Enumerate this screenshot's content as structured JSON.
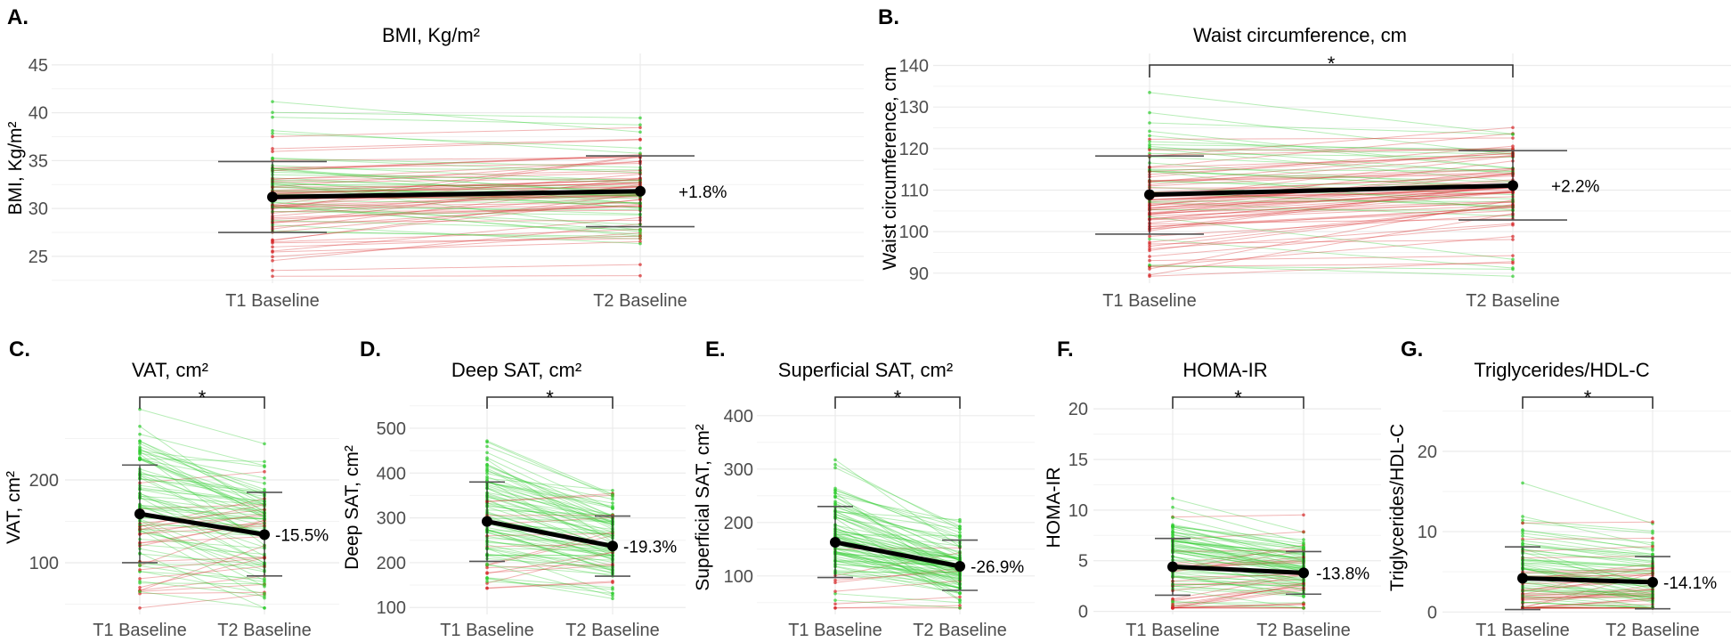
{
  "chart_data": [
    {
      "panel": "A.",
      "type": "line",
      "title": "BMI, Kg/m²",
      "ylabel": "BMI, Kg/m²",
      "categories": [
        "T1 Baseline",
        "T2 Baseline"
      ],
      "yticks": [
        25,
        30,
        35,
        40,
        45
      ],
      "ylim": [
        22.2,
        46.2
      ],
      "mean": [
        31.2,
        31.8
      ],
      "sd_low": [
        27.5,
        28.1
      ],
      "sd_high": [
        34.9,
        35.5
      ],
      "change": "+1.8%",
      "significant": false,
      "sig_label": ""
    },
    {
      "panel": "B.",
      "type": "line",
      "title": "Waist circumference, cm",
      "ylabel": "Waist circumference, cm",
      "categories": [
        "T1 Baseline",
        "T2 Baseline"
      ],
      "yticks": [
        90,
        100,
        110,
        120,
        130,
        140
      ],
      "ylim": [
        87.6,
        142.9
      ],
      "mean": [
        108.9,
        111.1
      ],
      "sd_low": [
        99.4,
        102.8
      ],
      "sd_high": [
        118.2,
        119.5
      ],
      "change": "+2.2%",
      "significant": true,
      "sig_label": "*"
    },
    {
      "panel": "C.",
      "type": "line",
      "title": "VAT, cm²",
      "ylabel": "VAT, cm²",
      "categories": [
        "T1 Baseline",
        "T2 Baseline"
      ],
      "yticks": [
        100,
        200
      ],
      "ylim": [
        37.6,
        295.7
      ],
      "mean": [
        159,
        134
      ],
      "sd_low": [
        100,
        84
      ],
      "sd_high": [
        218,
        185
      ],
      "change": "-15.5%",
      "significant": true,
      "sig_label": "*"
    },
    {
      "panel": "D.",
      "type": "line",
      "title": "Deep SAT, cm²",
      "ylabel": "Deep SAT, cm²",
      "categories": [
        "T1 Baseline",
        "T2 Baseline"
      ],
      "yticks": [
        100,
        200,
        300,
        400,
        500
      ],
      "ylim": [
        84.6,
        561.5
      ],
      "mean": [
        292,
        237
      ],
      "sd_low": [
        203,
        170
      ],
      "sd_high": [
        380,
        304
      ],
      "change": "-19.3%",
      "significant": true,
      "sig_label": "*"
    },
    {
      "panel": "E.",
      "type": "line",
      "title": "Superficial SAT, cm²",
      "ylabel": "Superficial SAT, cm²",
      "categories": [
        "T1 Baseline",
        "T2 Baseline"
      ],
      "yticks": [
        100,
        200,
        300,
        400
      ],
      "ylim": [
        28,
        428
      ],
      "mean": [
        163,
        118
      ],
      "sd_low": [
        97,
        73
      ],
      "sd_high": [
        230,
        167
      ],
      "change": "-26.9%",
      "significant": true,
      "sig_label": "*"
    },
    {
      "panel": "F.",
      "type": "line",
      "title": "HOMA-IR",
      "ylabel": "HOMA-IR",
      "categories": [
        "T1 Baseline",
        "T2 Baseline"
      ],
      "yticks": [
        0,
        5,
        10,
        15,
        20
      ],
      "ylim": [
        -0.3,
        20.8
      ],
      "mean": [
        4.4,
        3.8
      ],
      "sd_low": [
        1.6,
        1.7
      ],
      "sd_high": [
        7.2,
        5.9
      ],
      "change": "-13.8%",
      "significant": true,
      "sig_label": "*"
    },
    {
      "panel": "G.",
      "type": "line",
      "title": "Triglycerides/HDL-C",
      "ylabel": "Triglycerides/HDL-C",
      "categories": [
        "T1 Baseline",
        "T2 Baseline"
      ],
      "yticks": [
        0,
        10,
        20
      ],
      "ylim": [
        -0.3,
        26.3
      ],
      "mean": [
        4.2,
        3.7
      ],
      "sd_low": [
        0.3,
        0.4
      ],
      "sd_high": [
        8.1,
        6.9
      ],
      "change": "-14.1%",
      "significant": true,
      "sig_label": "*"
    }
  ],
  "colors": {
    "decrease": "#2ecc2e",
    "increase": "#d62728",
    "mean_line": "#000000",
    "sd_bar": "#555555",
    "grid": "#ebebeb"
  }
}
